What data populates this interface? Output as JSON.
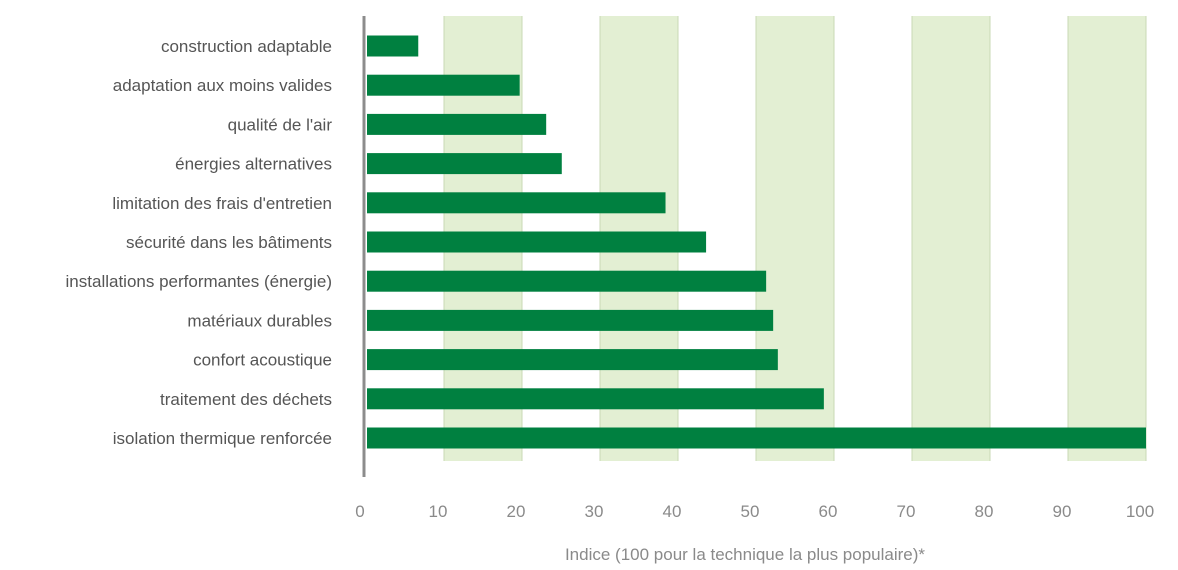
{
  "chart_data": {
    "type": "bar",
    "orientation": "horizontal",
    "categories": [
      "construction adaptable",
      "adaptation aux moins valides",
      "qualité de l'air",
      "énergies alternatives",
      "limitation des frais d'entretien",
      "sécurité dans les bâtiments",
      "installations performantes (énergie)",
      "matériaux durables",
      "confort acoustique",
      "traitement des déchets",
      "isolation thermique renforcée"
    ],
    "values": [
      6.7,
      19.7,
      23.1,
      25.1,
      38.4,
      43.6,
      51.3,
      52.2,
      52.8,
      58.7,
      100
    ],
    "xlabel": "Indice (100 pour la technique la plus populaire)*",
    "xlim": [
      0,
      100
    ],
    "xticks": [
      "0",
      "10",
      "20",
      "30",
      "40",
      "50",
      "60",
      "70",
      "80",
      "90",
      "100"
    ],
    "shaded_bands": [
      [
        10,
        20
      ],
      [
        30,
        40
      ],
      [
        50,
        60
      ],
      [
        70,
        80
      ],
      [
        90,
        100
      ]
    ],
    "colors": {
      "bar": "#008040",
      "band": "#e3efd3",
      "band_border": "#c9d8b5",
      "axis": "#8c8c8c"
    }
  }
}
